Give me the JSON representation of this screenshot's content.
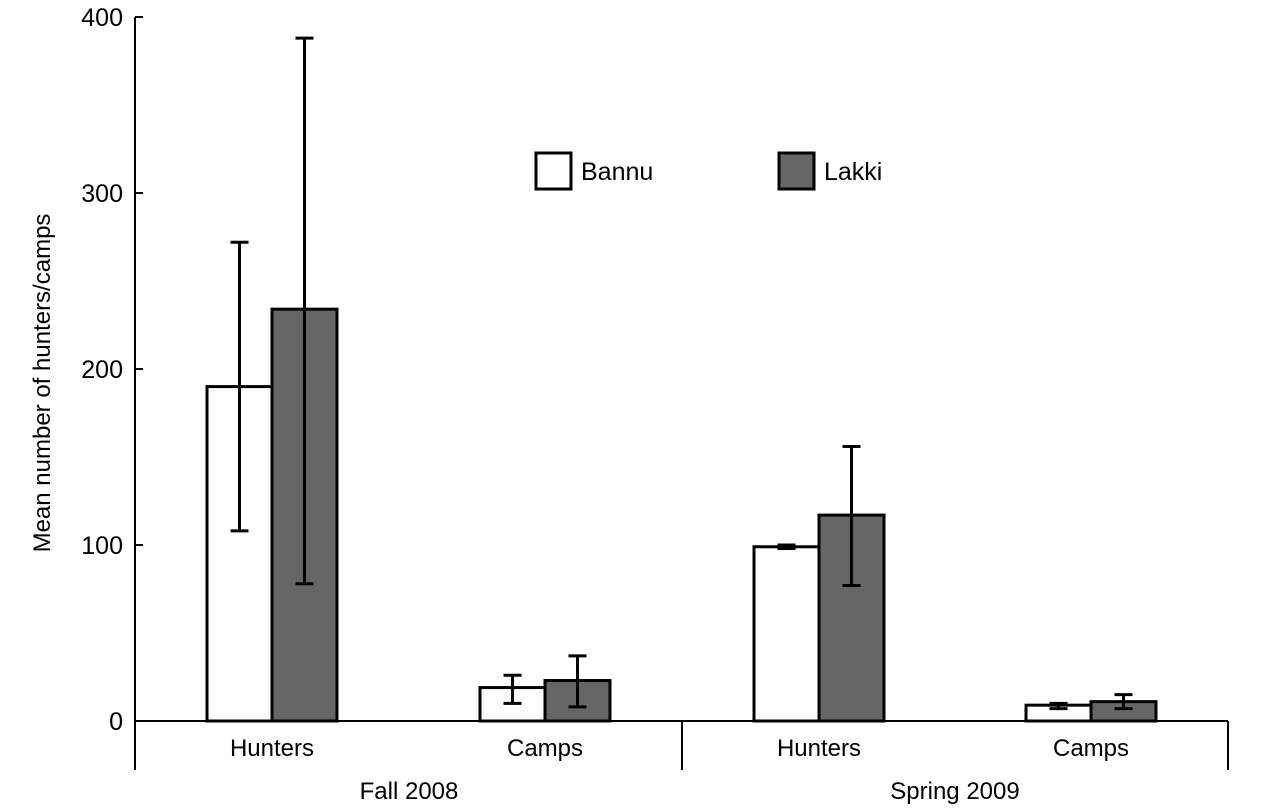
{
  "chart_data": {
    "type": "bar",
    "title": "",
    "ylabel": "Mean number of hunters/camps",
    "ylim": [
      0,
      400
    ],
    "yticks": [
      0,
      100,
      200,
      300,
      400
    ],
    "groups": [
      {
        "label": "Fall 2008",
        "categories": [
          "Hunters",
          "Camps"
        ]
      },
      {
        "label": "Spring 2009",
        "categories": [
          "Hunters",
          "Camps"
        ]
      }
    ],
    "categories": [
      "Hunters",
      "Camps",
      "Hunters",
      "Camps"
    ],
    "series": [
      {
        "name": "Bannu",
        "color": "#ffffff",
        "values": [
          190,
          19,
          99,
          9
        ],
        "err_low": [
          108,
          10,
          98,
          7
        ],
        "err_high": [
          272,
          26,
          100,
          10
        ]
      },
      {
        "name": "Lakki",
        "color": "#666666",
        "values": [
          234,
          23,
          117,
          11
        ],
        "err_low": [
          78,
          8,
          77,
          7
        ],
        "err_high": [
          388,
          37,
          156,
          15
        ]
      }
    ],
    "legend": {
      "placement": "top-center"
    },
    "grid": false
  }
}
